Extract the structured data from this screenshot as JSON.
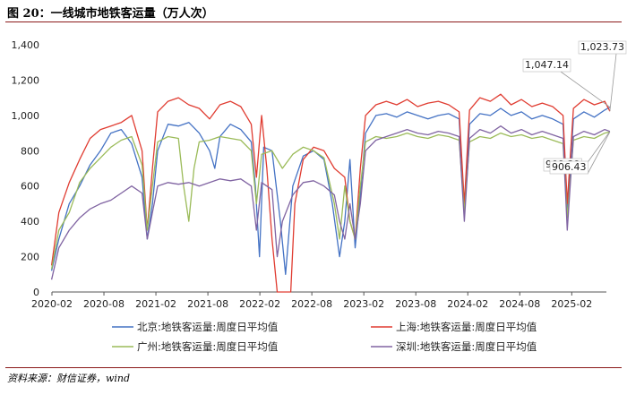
{
  "figure": {
    "title": "图 20：一线城市地铁客运量（万人次）",
    "source": "资料来源：财信证券，wind"
  },
  "chart_data": {
    "type": "line",
    "x_ticks": [
      "2020-02",
      "2020-08",
      "2021-02",
      "2021-08",
      "2022-02",
      "2022-08",
      "2023-02",
      "2023-08",
      "2024-02",
      "2024-08",
      "2025-02"
    ],
    "x_range": [
      "2020-02",
      "2025-06"
    ],
    "y_ticks": [
      "0",
      "200",
      "400",
      "600",
      "800",
      "1,000",
      "1,200",
      "1,400"
    ],
    "ylim": [
      0,
      1400
    ],
    "legend_position": "bottom",
    "grid": false,
    "series": [
      {
        "name": "北京:地铁客运量:周度日平均值",
        "color": "#4472c4",
        "values": [
          [
            2020.08,
            120
          ],
          [
            2020.15,
            300
          ],
          [
            2020.25,
            500
          ],
          [
            2020.35,
            600
          ],
          [
            2020.45,
            720
          ],
          [
            2020.55,
            800
          ],
          [
            2020.65,
            900
          ],
          [
            2020.75,
            920
          ],
          [
            2020.85,
            840
          ],
          [
            2020.95,
            650
          ],
          [
            2021.0,
            300
          ],
          [
            2021.05,
            500
          ],
          [
            2021.1,
            800
          ],
          [
            2021.2,
            950
          ],
          [
            2021.3,
            940
          ],
          [
            2021.4,
            960
          ],
          [
            2021.5,
            900
          ],
          [
            2021.6,
            800
          ],
          [
            2021.65,
            700
          ],
          [
            2021.7,
            880
          ],
          [
            2021.8,
            950
          ],
          [
            2021.9,
            920
          ],
          [
            2022.0,
            850
          ],
          [
            2022.04,
            600
          ],
          [
            2022.08,
            200
          ],
          [
            2022.12,
            820
          ],
          [
            2022.2,
            800
          ],
          [
            2022.28,
            400
          ],
          [
            2022.33,
            100
          ],
          [
            2022.4,
            600
          ],
          [
            2022.5,
            770
          ],
          [
            2022.6,
            800
          ],
          [
            2022.7,
            750
          ],
          [
            2022.78,
            500
          ],
          [
            2022.85,
            200
          ],
          [
            2022.9,
            400
          ],
          [
            2022.95,
            750
          ],
          [
            2023.0,
            250
          ],
          [
            2023.05,
            550
          ],
          [
            2023.1,
            900
          ],
          [
            2023.2,
            1000
          ],
          [
            2023.3,
            1010
          ],
          [
            2023.4,
            990
          ],
          [
            2023.5,
            1020
          ],
          [
            2023.6,
            1000
          ],
          [
            2023.7,
            980
          ],
          [
            2023.8,
            1000
          ],
          [
            2023.9,
            1010
          ],
          [
            2024.0,
            980
          ],
          [
            2024.05,
            450
          ],
          [
            2024.1,
            950
          ],
          [
            2024.2,
            1010
          ],
          [
            2024.3,
            1000
          ],
          [
            2024.4,
            1040
          ],
          [
            2024.5,
            1000
          ],
          [
            2024.6,
            1020
          ],
          [
            2024.7,
            980
          ],
          [
            2024.8,
            1000
          ],
          [
            2024.9,
            980
          ],
          [
            2025.0,
            950
          ],
          [
            2025.04,
            450
          ],
          [
            2025.1,
            980
          ],
          [
            2025.2,
            1020
          ],
          [
            2025.3,
            990
          ],
          [
            2025.4,
            1030
          ],
          [
            2025.45,
            1047.14
          ]
        ]
      },
      {
        "name": "上海:地铁客运量:周度日平均值",
        "color": "#e03c31",
        "values": [
          [
            2020.08,
            150
          ],
          [
            2020.15,
            450
          ],
          [
            2020.25,
            620
          ],
          [
            2020.35,
            750
          ],
          [
            2020.45,
            870
          ],
          [
            2020.55,
            920
          ],
          [
            2020.65,
            940
          ],
          [
            2020.75,
            960
          ],
          [
            2020.85,
            1000
          ],
          [
            2020.95,
            800
          ],
          [
            2021.0,
            350
          ],
          [
            2021.05,
            700
          ],
          [
            2021.1,
            1020
          ],
          [
            2021.2,
            1080
          ],
          [
            2021.3,
            1100
          ],
          [
            2021.4,
            1060
          ],
          [
            2021.5,
            1040
          ],
          [
            2021.6,
            980
          ],
          [
            2021.7,
            1060
          ],
          [
            2021.8,
            1080
          ],
          [
            2021.9,
            1050
          ],
          [
            2022.0,
            950
          ],
          [
            2022.05,
            650
          ],
          [
            2022.1,
            1000
          ],
          [
            2022.15,
            700
          ],
          [
            2022.2,
            300
          ],
          [
            2022.25,
            0
          ],
          [
            2022.38,
            0
          ],
          [
            2022.42,
            500
          ],
          [
            2022.5,
            750
          ],
          [
            2022.6,
            820
          ],
          [
            2022.7,
            800
          ],
          [
            2022.8,
            700
          ],
          [
            2022.9,
            650
          ],
          [
            2022.95,
            400
          ],
          [
            2023.0,
            300
          ],
          [
            2023.05,
            700
          ],
          [
            2023.1,
            1000
          ],
          [
            2023.2,
            1060
          ],
          [
            2023.3,
            1080
          ],
          [
            2023.4,
            1060
          ],
          [
            2023.5,
            1090
          ],
          [
            2023.6,
            1050
          ],
          [
            2023.7,
            1070
          ],
          [
            2023.8,
            1080
          ],
          [
            2023.9,
            1060
          ],
          [
            2024.0,
            1020
          ],
          [
            2024.05,
            500
          ],
          [
            2024.1,
            1030
          ],
          [
            2024.2,
            1100
          ],
          [
            2024.3,
            1080
          ],
          [
            2024.4,
            1120
          ],
          [
            2024.5,
            1060
          ],
          [
            2024.6,
            1090
          ],
          [
            2024.7,
            1050
          ],
          [
            2024.8,
            1070
          ],
          [
            2024.9,
            1050
          ],
          [
            2025.0,
            1000
          ],
          [
            2025.04,
            500
          ],
          [
            2025.1,
            1040
          ],
          [
            2025.2,
            1090
          ],
          [
            2025.3,
            1060
          ],
          [
            2025.4,
            1080
          ],
          [
            2025.45,
            1023.73
          ]
        ]
      },
      {
        "name": "广州:地铁客运量:周度日平均值",
        "color": "#9bbb59",
        "values": [
          [
            2020.08,
            130
          ],
          [
            2020.15,
            350
          ],
          [
            2020.25,
            450
          ],
          [
            2020.35,
            620
          ],
          [
            2020.45,
            700
          ],
          [
            2020.55,
            760
          ],
          [
            2020.65,
            820
          ],
          [
            2020.75,
            860
          ],
          [
            2020.85,
            880
          ],
          [
            2020.95,
            720
          ],
          [
            2021.0,
            350
          ],
          [
            2021.05,
            600
          ],
          [
            2021.1,
            850
          ],
          [
            2021.2,
            880
          ],
          [
            2021.3,
            870
          ],
          [
            2021.35,
            600
          ],
          [
            2021.4,
            400
          ],
          [
            2021.45,
            700
          ],
          [
            2021.5,
            850
          ],
          [
            2021.6,
            860
          ],
          [
            2021.7,
            880
          ],
          [
            2021.8,
            870
          ],
          [
            2021.9,
            860
          ],
          [
            2022.0,
            800
          ],
          [
            2022.05,
            500
          ],
          [
            2022.1,
            780
          ],
          [
            2022.2,
            800
          ],
          [
            2022.3,
            700
          ],
          [
            2022.4,
            780
          ],
          [
            2022.5,
            820
          ],
          [
            2022.6,
            800
          ],
          [
            2022.7,
            760
          ],
          [
            2022.8,
            500
          ],
          [
            2022.85,
            300
          ],
          [
            2022.9,
            600
          ],
          [
            2022.95,
            400
          ],
          [
            2023.0,
            300
          ],
          [
            2023.05,
            600
          ],
          [
            2023.1,
            850
          ],
          [
            2023.2,
            880
          ],
          [
            2023.3,
            870
          ],
          [
            2023.4,
            880
          ],
          [
            2023.5,
            900
          ],
          [
            2023.6,
            880
          ],
          [
            2023.7,
            870
          ],
          [
            2023.8,
            890
          ],
          [
            2023.9,
            880
          ],
          [
            2024.0,
            860
          ],
          [
            2024.05,
            450
          ],
          [
            2024.1,
            850
          ],
          [
            2024.2,
            880
          ],
          [
            2024.3,
            870
          ],
          [
            2024.4,
            900
          ],
          [
            2024.5,
            880
          ],
          [
            2024.6,
            890
          ],
          [
            2024.7,
            870
          ],
          [
            2024.8,
            880
          ],
          [
            2024.9,
            860
          ],
          [
            2025.0,
            840
          ],
          [
            2025.04,
            420
          ],
          [
            2025.1,
            860
          ],
          [
            2025.2,
            880
          ],
          [
            2025.3,
            870
          ],
          [
            2025.4,
            900
          ],
          [
            2025.45,
            906.43
          ]
        ]
      },
      {
        "name": "深圳:地铁客运量:周度日平均值",
        "color": "#8064a2",
        "values": [
          [
            2020.08,
            70
          ],
          [
            2020.15,
            250
          ],
          [
            2020.25,
            350
          ],
          [
            2020.35,
            420
          ],
          [
            2020.45,
            470
          ],
          [
            2020.55,
            500
          ],
          [
            2020.65,
            520
          ],
          [
            2020.75,
            560
          ],
          [
            2020.85,
            600
          ],
          [
            2020.95,
            560
          ],
          [
            2021.0,
            300
          ],
          [
            2021.05,
            450
          ],
          [
            2021.1,
            600
          ],
          [
            2021.2,
            620
          ],
          [
            2021.3,
            610
          ],
          [
            2021.4,
            620
          ],
          [
            2021.5,
            600
          ],
          [
            2021.6,
            620
          ],
          [
            2021.7,
            640
          ],
          [
            2021.8,
            630
          ],
          [
            2021.9,
            640
          ],
          [
            2022.0,
            600
          ],
          [
            2022.05,
            350
          ],
          [
            2022.1,
            620
          ],
          [
            2022.2,
            580
          ],
          [
            2022.25,
            200
          ],
          [
            2022.3,
            400
          ],
          [
            2022.4,
            550
          ],
          [
            2022.5,
            620
          ],
          [
            2022.6,
            630
          ],
          [
            2022.7,
            600
          ],
          [
            2022.8,
            550
          ],
          [
            2022.85,
            400
          ],
          [
            2022.9,
            300
          ],
          [
            2022.95,
            500
          ],
          [
            2023.0,
            300
          ],
          [
            2023.05,
            500
          ],
          [
            2023.1,
            800
          ],
          [
            2023.2,
            860
          ],
          [
            2023.3,
            880
          ],
          [
            2023.4,
            900
          ],
          [
            2023.5,
            920
          ],
          [
            2023.6,
            900
          ],
          [
            2023.7,
            890
          ],
          [
            2023.8,
            910
          ],
          [
            2023.9,
            900
          ],
          [
            2024.0,
            880
          ],
          [
            2024.05,
            400
          ],
          [
            2024.1,
            870
          ],
          [
            2024.2,
            920
          ],
          [
            2024.3,
            900
          ],
          [
            2024.4,
            940
          ],
          [
            2024.5,
            900
          ],
          [
            2024.6,
            920
          ],
          [
            2024.7,
            890
          ],
          [
            2024.8,
            910
          ],
          [
            2024.9,
            890
          ],
          [
            2025.0,
            870
          ],
          [
            2025.04,
            350
          ],
          [
            2025.1,
            880
          ],
          [
            2025.2,
            910
          ],
          [
            2025.3,
            890
          ],
          [
            2025.4,
            920
          ],
          [
            2025.45,
            909.39
          ]
        ]
      }
    ],
    "annotations": [
      {
        "text": "1,023.73",
        "series": 1
      },
      {
        "text": "1,047.14",
        "series": 0
      },
      {
        "text": "909.39",
        "series": 3
      },
      {
        "text": "906.43",
        "series": 2
      }
    ]
  }
}
